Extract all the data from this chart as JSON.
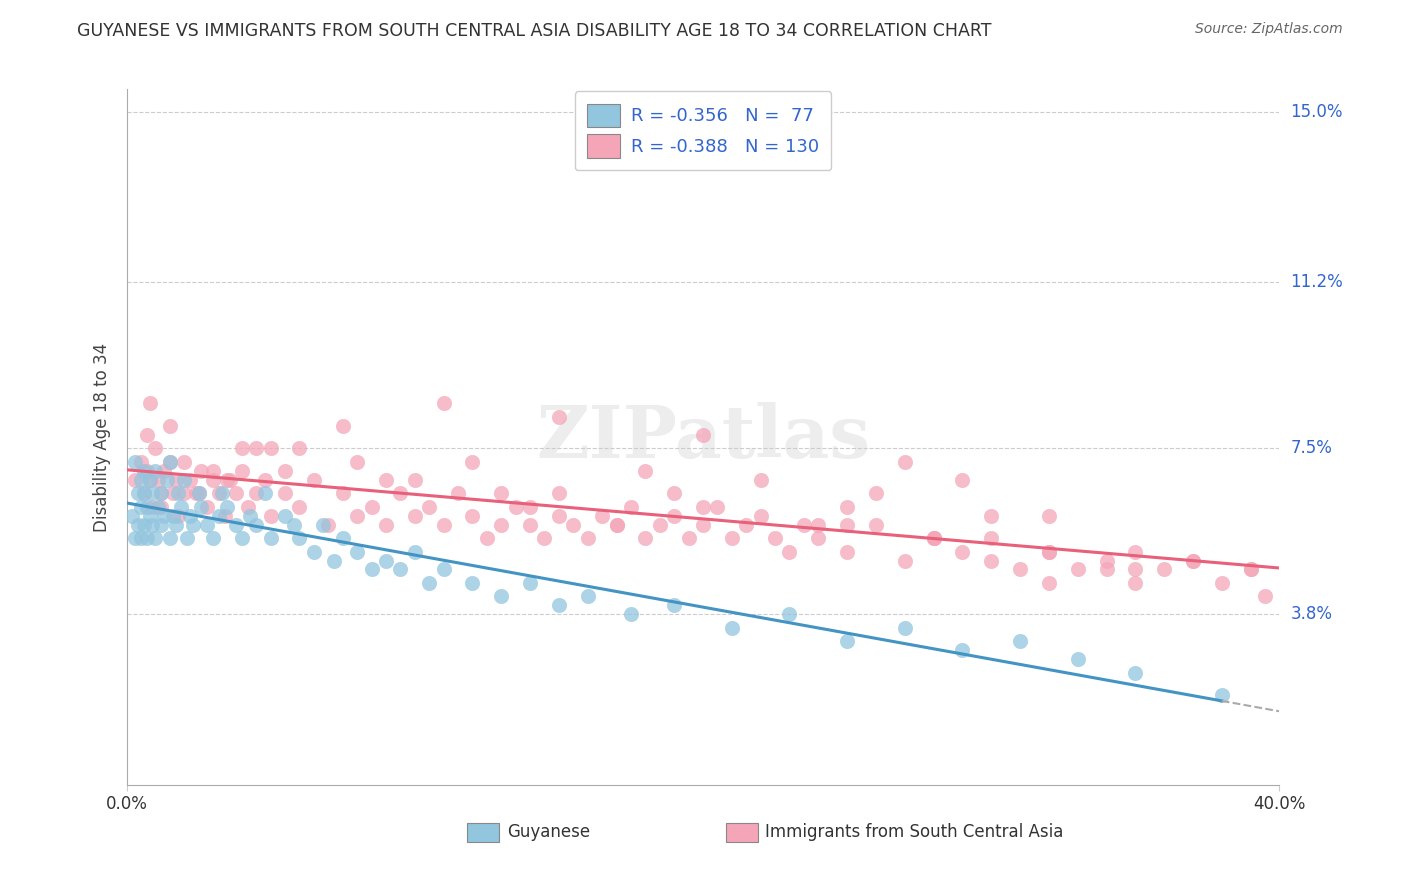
{
  "title": "GUYANESE VS IMMIGRANTS FROM SOUTH CENTRAL ASIA DISABILITY AGE 18 TO 34 CORRELATION CHART",
  "source": "Source: ZipAtlas.com",
  "ylabel": "Disability Age 18 to 34",
  "xlim": [
    0.0,
    0.4
  ],
  "ylim": [
    0.0,
    0.155
  ],
  "ytick_positions": [
    0.038,
    0.075,
    0.112,
    0.15
  ],
  "ytick_labels": [
    "3.8%",
    "7.5%",
    "11.2%",
    "15.0%"
  ],
  "legend_label1": "Guyanese",
  "legend_label2": "Immigrants from South Central Asia",
  "R1": -0.356,
  "N1": 77,
  "R2": -0.388,
  "N2": 130,
  "color_blue": "#92c5de",
  "color_pink": "#f4a6b8",
  "color_blue_line": "#4393c3",
  "color_pink_line": "#e8607a",
  "watermark_text": "ZIPatlas",
  "blue_x": [
    0.002,
    0.003,
    0.003,
    0.004,
    0.004,
    0.005,
    0.005,
    0.005,
    0.006,
    0.006,
    0.006,
    0.007,
    0.007,
    0.008,
    0.008,
    0.009,
    0.009,
    0.01,
    0.01,
    0.011,
    0.012,
    0.012,
    0.013,
    0.014,
    0.015,
    0.015,
    0.016,
    0.017,
    0.018,
    0.019,
    0.02,
    0.021,
    0.022,
    0.023,
    0.025,
    0.026,
    0.028,
    0.03,
    0.032,
    0.033,
    0.035,
    0.038,
    0.04,
    0.043,
    0.045,
    0.048,
    0.05,
    0.055,
    0.058,
    0.06,
    0.065,
    0.068,
    0.072,
    0.075,
    0.08,
    0.085,
    0.09,
    0.095,
    0.1,
    0.105,
    0.11,
    0.12,
    0.13,
    0.14,
    0.15,
    0.16,
    0.175,
    0.19,
    0.21,
    0.23,
    0.25,
    0.27,
    0.29,
    0.31,
    0.33,
    0.35,
    0.38
  ],
  "blue_y": [
    0.06,
    0.072,
    0.055,
    0.065,
    0.058,
    0.068,
    0.062,
    0.055,
    0.07,
    0.058,
    0.065,
    0.062,
    0.055,
    0.068,
    0.06,
    0.058,
    0.065,
    0.07,
    0.055,
    0.062,
    0.058,
    0.065,
    0.06,
    0.068,
    0.072,
    0.055,
    0.06,
    0.058,
    0.065,
    0.062,
    0.068,
    0.055,
    0.06,
    0.058,
    0.065,
    0.062,
    0.058,
    0.055,
    0.06,
    0.065,
    0.062,
    0.058,
    0.055,
    0.06,
    0.058,
    0.065,
    0.055,
    0.06,
    0.058,
    0.055,
    0.052,
    0.058,
    0.05,
    0.055,
    0.052,
    0.048,
    0.05,
    0.048,
    0.052,
    0.045,
    0.048,
    0.045,
    0.042,
    0.045,
    0.04,
    0.042,
    0.038,
    0.04,
    0.035,
    0.038,
    0.032,
    0.035,
    0.03,
    0.032,
    0.028,
    0.025,
    0.02
  ],
  "pink_x": [
    0.003,
    0.005,
    0.006,
    0.007,
    0.008,
    0.009,
    0.01,
    0.011,
    0.012,
    0.013,
    0.015,
    0.016,
    0.017,
    0.018,
    0.02,
    0.022,
    0.024,
    0.026,
    0.028,
    0.03,
    0.032,
    0.034,
    0.036,
    0.038,
    0.04,
    0.042,
    0.045,
    0.048,
    0.05,
    0.055,
    0.06,
    0.065,
    0.07,
    0.075,
    0.08,
    0.085,
    0.09,
    0.095,
    0.1,
    0.105,
    0.11,
    0.115,
    0.12,
    0.125,
    0.13,
    0.135,
    0.14,
    0.145,
    0.15,
    0.155,
    0.16,
    0.165,
    0.17,
    0.175,
    0.18,
    0.185,
    0.19,
    0.195,
    0.2,
    0.205,
    0.21,
    0.215,
    0.22,
    0.225,
    0.23,
    0.235,
    0.24,
    0.25,
    0.26,
    0.27,
    0.28,
    0.29,
    0.3,
    0.31,
    0.32,
    0.33,
    0.34,
    0.35,
    0.36,
    0.37,
    0.38,
    0.39,
    0.395,
    0.27,
    0.29,
    0.15,
    0.2,
    0.11,
    0.32,
    0.34,
    0.25,
    0.18,
    0.13,
    0.08,
    0.06,
    0.035,
    0.025,
    0.015,
    0.008,
    0.04,
    0.055,
    0.09,
    0.14,
    0.19,
    0.24,
    0.28,
    0.32,
    0.35,
    0.37,
    0.3,
    0.26,
    0.22,
    0.17,
    0.12,
    0.075,
    0.045,
    0.03,
    0.02,
    0.012,
    0.007,
    0.05,
    0.1,
    0.15,
    0.2,
    0.25,
    0.3,
    0.35,
    0.39,
    0.32,
    0.28
  ],
  "pink_y": [
    0.068,
    0.072,
    0.065,
    0.07,
    0.068,
    0.062,
    0.075,
    0.068,
    0.065,
    0.07,
    0.072,
    0.065,
    0.068,
    0.06,
    0.072,
    0.068,
    0.065,
    0.07,
    0.062,
    0.068,
    0.065,
    0.06,
    0.068,
    0.065,
    0.07,
    0.062,
    0.065,
    0.068,
    0.06,
    0.065,
    0.062,
    0.068,
    0.058,
    0.065,
    0.06,
    0.062,
    0.058,
    0.065,
    0.06,
    0.062,
    0.058,
    0.065,
    0.06,
    0.055,
    0.058,
    0.062,
    0.058,
    0.055,
    0.06,
    0.058,
    0.055,
    0.06,
    0.058,
    0.062,
    0.055,
    0.058,
    0.06,
    0.055,
    0.058,
    0.062,
    0.055,
    0.058,
    0.06,
    0.055,
    0.052,
    0.058,
    0.055,
    0.052,
    0.058,
    0.05,
    0.055,
    0.052,
    0.05,
    0.048,
    0.052,
    0.048,
    0.05,
    0.045,
    0.048,
    0.05,
    0.045,
    0.048,
    0.042,
    0.072,
    0.068,
    0.082,
    0.078,
    0.085,
    0.045,
    0.048,
    0.062,
    0.07,
    0.065,
    0.072,
    0.075,
    0.068,
    0.065,
    0.08,
    0.085,
    0.075,
    0.07,
    0.068,
    0.062,
    0.065,
    0.058,
    0.055,
    0.052,
    0.048,
    0.05,
    0.06,
    0.065,
    0.068,
    0.058,
    0.072,
    0.08,
    0.075,
    0.07,
    0.065,
    0.062,
    0.078,
    0.075,
    0.068,
    0.065,
    0.062,
    0.058,
    0.055,
    0.052,
    0.048,
    0.06,
    0.055
  ]
}
